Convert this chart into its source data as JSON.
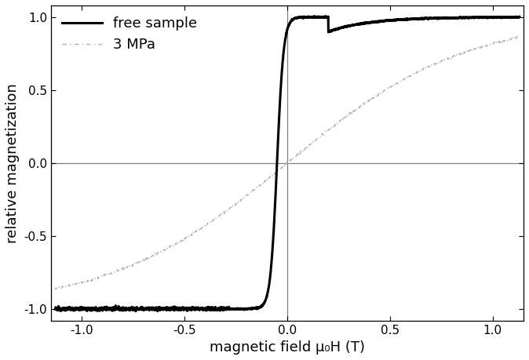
{
  "title": "",
  "xlabel": "magnetic field μ₀H (T)",
  "ylabel": "relative magnetization",
  "xlim": [
    -1.15,
    1.15
  ],
  "ylim": [
    -1.08,
    1.08
  ],
  "xticks": [
    -1.0,
    -0.5,
    0.0,
    0.5,
    1.0
  ],
  "yticks": [
    -1.0,
    -0.5,
    0.0,
    0.5,
    1.0
  ],
  "background_color": "#ffffff",
  "free_sample_color": "#000000",
  "stress_color": "#aaaaaa",
  "free_sample_label": "free sample",
  "stress_label": "3 MPa",
  "free_sample_linewidth": 2.2,
  "stress_linewidth": 1.0,
  "legend_fontsize": 13,
  "axis_fontsize": 13
}
